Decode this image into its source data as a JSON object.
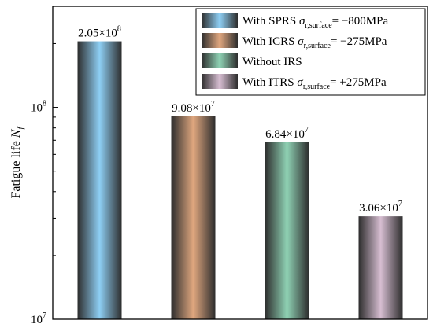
{
  "chart_data": {
    "type": "bar",
    "scale": "log",
    "ylim": [
      10000000,
      300000000
    ],
    "ylabel": {
      "main": "Fatigue life ",
      "var": "N",
      "sub": "f"
    },
    "yticks": [
      {
        "value": 10000000,
        "base": "10",
        "exp": "7"
      },
      {
        "value": 100000000,
        "base": "10",
        "exp": "8"
      }
    ],
    "categories": [
      "With SPRS σr,surface= −800MPa",
      "With ICRS σr,surface= −275MPa",
      "Without IRS",
      "With ITRS σr,surface= +275MPa"
    ],
    "values": [
      205000000,
      90800000,
      68400000,
      30600000
    ],
    "data_labels": [
      {
        "mant": "2.05×10",
        "exp": "8"
      },
      {
        "mant": "9.08×10",
        "exp": "7"
      },
      {
        "mant": "6.84×10",
        "exp": "7"
      },
      {
        "mant": "3.06×10",
        "exp": "7"
      }
    ],
    "legend_placement": "top-right",
    "legend": [
      {
        "prefix": "With SPRS ",
        "sym": "σ",
        "sub": "r,surface",
        "suffix": "= −800MPa",
        "color": "#8ecff4"
      },
      {
        "prefix": "With ICRS ",
        "sym": "σ",
        "sub": "r,surface",
        "suffix": "= −275MPa",
        "color": "#e0a77f"
      },
      {
        "prefix": "Without IRS",
        "sym": "",
        "sub": "",
        "suffix": "",
        "color": "#8fd2b4"
      },
      {
        "prefix": "With ITRS ",
        "sym": "σ",
        "sub": "r,surface",
        "suffix": "= +275MPa",
        "color": "#d7bed2"
      }
    ],
    "colors": [
      "#8ecff4",
      "#e0a77f",
      "#8fd2b4",
      "#d7bed2"
    ],
    "grid": false
  }
}
